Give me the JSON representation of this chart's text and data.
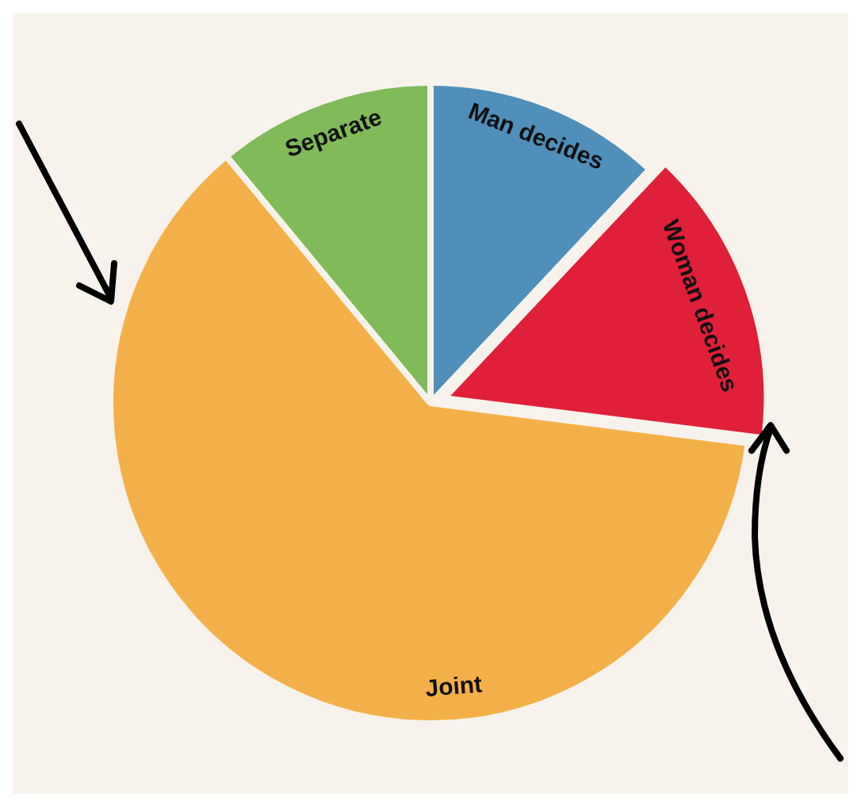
{
  "chart_data": {
    "type": "pie",
    "categories": [
      "Man decides",
      "Woman decides",
      "Joint",
      "Separate"
    ],
    "values": [
      12,
      15,
      62,
      11
    ],
    "colors": [
      "#4f8fba",
      "#e01f38",
      "#f4b048",
      "#80bb5a"
    ],
    "legend": false
  }
}
